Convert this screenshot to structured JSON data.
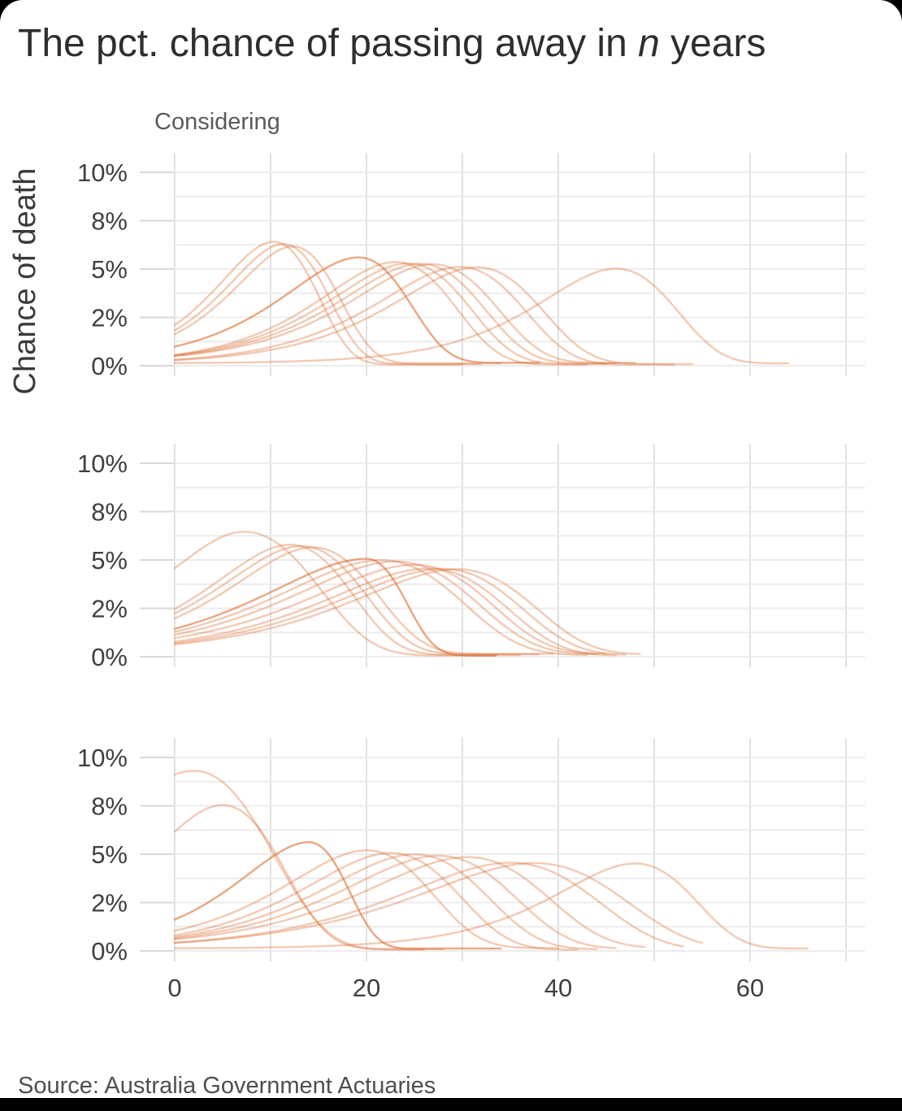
{
  "title": {
    "prefix": "The pct. chance of passing away in ",
    "italic": "n",
    "suffix": " years"
  },
  "legend_label": "Considering",
  "y_axis_label": "Chance of death",
  "source": "Source: Australia Government Actuaries",
  "colors": {
    "curve": "#dd7033",
    "grid_horizontal": "#ececec",
    "grid_vertical": "#e2e2e2",
    "axis_tick": "#d9d9d9",
    "title_text": "#2e2e2e",
    "muted_text": "#5a5a5a",
    "tick_label_text": "#3f3f3f",
    "card_background": "#ffffff",
    "page_background": "#000000"
  },
  "chart_data": {
    "type": "line",
    "title": "The pct. chance of passing away in n years",
    "xlabel": "",
    "ylabel": "Chance of death",
    "x_ticks": [
      0,
      20,
      40,
      60
    ],
    "x_gridline_step": 10,
    "x_max": 72,
    "y_max_pct": 10,
    "y_gridline_step_pct": 1.25,
    "y_tick_labels": [
      {
        "value": 10,
        "label": "10%"
      },
      {
        "value": 7.5,
        "label": "8%"
      },
      {
        "value": 5,
        "label": "5%"
      },
      {
        "value": 2.5,
        "label": "2%"
      },
      {
        "value": 0,
        "label": "0%"
      }
    ],
    "legend": "Considering",
    "grid": true,
    "series_note": "Three stacked panels; each translucent orange curve is the chance of death in n years for one cohort, modeled as peak_pct * exp(1 + z - exp(z)) with z = (x - peak_x)/width (width_right after the peak); curve drawn from x=0 to x_end.",
    "panels": [
      {
        "name": "panel-1",
        "curves": [
          {
            "peak_x": 10.3,
            "peak_pct": 6.35,
            "width": 5.15,
            "x_end": 30
          },
          {
            "peak_x": 11.3,
            "peak_pct": 6.2,
            "width": 5.23,
            "x_end": 32
          },
          {
            "peak_x": 12.3,
            "peak_pct": 6.05,
            "width": 5.37,
            "x_end": 34
          },
          {
            "peak_x": 19.2,
            "peak_pct": 5.45,
            "width": 6.83,
            "width_right": 5.9,
            "x_end": 38,
            "emphasis": 2
          },
          {
            "peak_x": 23.0,
            "peak_pct": 5.3,
            "width": 6.91,
            "x_end": 43
          },
          {
            "peak_x": 24.3,
            "peak_pct": 5.2,
            "width": 7.11,
            "x_end": 45
          },
          {
            "peak_x": 25.6,
            "peak_pct": 5.15,
            "width": 7.25,
            "x_end": 46
          },
          {
            "peak_x": 26.9,
            "peak_pct": 5.1,
            "width": 7.35,
            "x_end": 48
          },
          {
            "peak_x": 29.7,
            "peak_pct": 5.05,
            "width": 7.44,
            "x_end": 52
          },
          {
            "peak_x": 31.5,
            "peak_pct": 5.0,
            "width": 7.48,
            "x_end": 54
          },
          {
            "peak_x": 46.0,
            "peak_pct": 4.9,
            "width": 7.0,
            "x_end": 64
          }
        ]
      },
      {
        "name": "panel-2",
        "curves": [
          {
            "peak_x": 7.2,
            "peak_pct": 6.4,
            "width": 7.4,
            "width_right": 8.5,
            "x_end": 33.5
          },
          {
            "peak_x": 12.0,
            "peak_pct": 5.7,
            "width": 7.1,
            "x_end": 36
          },
          {
            "peak_x": 13.2,
            "peak_pct": 5.6,
            "width": 7.3,
            "x_end": 38
          },
          {
            "peak_x": 14.4,
            "peak_pct": 5.5,
            "width": 7.35,
            "x_end": 39.5
          },
          {
            "peak_x": 20.0,
            "peak_pct": 5.0,
            "width": 9.2,
            "width_right": 4.5,
            "x_end": 33.5,
            "emphasis": 2
          },
          {
            "peak_x": 21.5,
            "peak_pct": 4.9,
            "width": 9.3,
            "x_end": 43
          },
          {
            "peak_x": 23.0,
            "peak_pct": 4.8,
            "width": 9.3,
            "x_end": 44
          },
          {
            "peak_x": 25.0,
            "peak_pct": 4.6,
            "width": 9.4,
            "width_right": 8.8,
            "x_end": 45
          },
          {
            "peak_x": 26.5,
            "peak_pct": 4.5,
            "width": 9.5,
            "width_right": 8.8,
            "x_end": 46
          },
          {
            "peak_x": 28.0,
            "peak_pct": 4.45,
            "width": 9.5,
            "width_right": 8.8,
            "x_end": 47
          },
          {
            "peak_x": 29.5,
            "peak_pct": 4.4,
            "width": 9.5,
            "width_right": 8.8,
            "x_end": 48.5
          }
        ]
      },
      {
        "name": "panel-3",
        "curves": [
          {
            "peak_x": 2.0,
            "peak_pct": 9.25,
            "width": 9.35,
            "width_right": 8.8,
            "x_end": 26
          },
          {
            "peak_x": 5.0,
            "peak_pct": 7.45,
            "width": 7.0,
            "x_end": 28
          },
          {
            "peak_x": 14.0,
            "peak_pct": 5.5,
            "width": 6.4,
            "width_right": 4.5,
            "x_end": 34,
            "emphasis": 2
          },
          {
            "peak_x": 20.0,
            "peak_pct": 5.05,
            "width": 7.5,
            "x_end": 40
          },
          {
            "peak_x": 22.5,
            "peak_pct": 5.0,
            "width": 7.9,
            "x_end": 42
          },
          {
            "peak_x": 25.0,
            "peak_pct": 4.9,
            "width": 8.3,
            "x_end": 44
          },
          {
            "peak_x": 27.5,
            "peak_pct": 4.8,
            "width": 8.7,
            "x_end": 46
          },
          {
            "peak_x": 30.5,
            "peak_pct": 4.7,
            "width": 9.2,
            "x_end": 49
          },
          {
            "peak_x": 35.0,
            "peak_pct": 4.5,
            "width": 10.0,
            "x_end": 53
          },
          {
            "peak_x": 37.5,
            "peak_pct": 4.45,
            "width": 10.5,
            "x_end": 55
          },
          {
            "peak_x": 48.0,
            "peak_pct": 4.4,
            "width": 7.2,
            "width_right": 7.0,
            "x_end": 66
          }
        ]
      }
    ]
  }
}
